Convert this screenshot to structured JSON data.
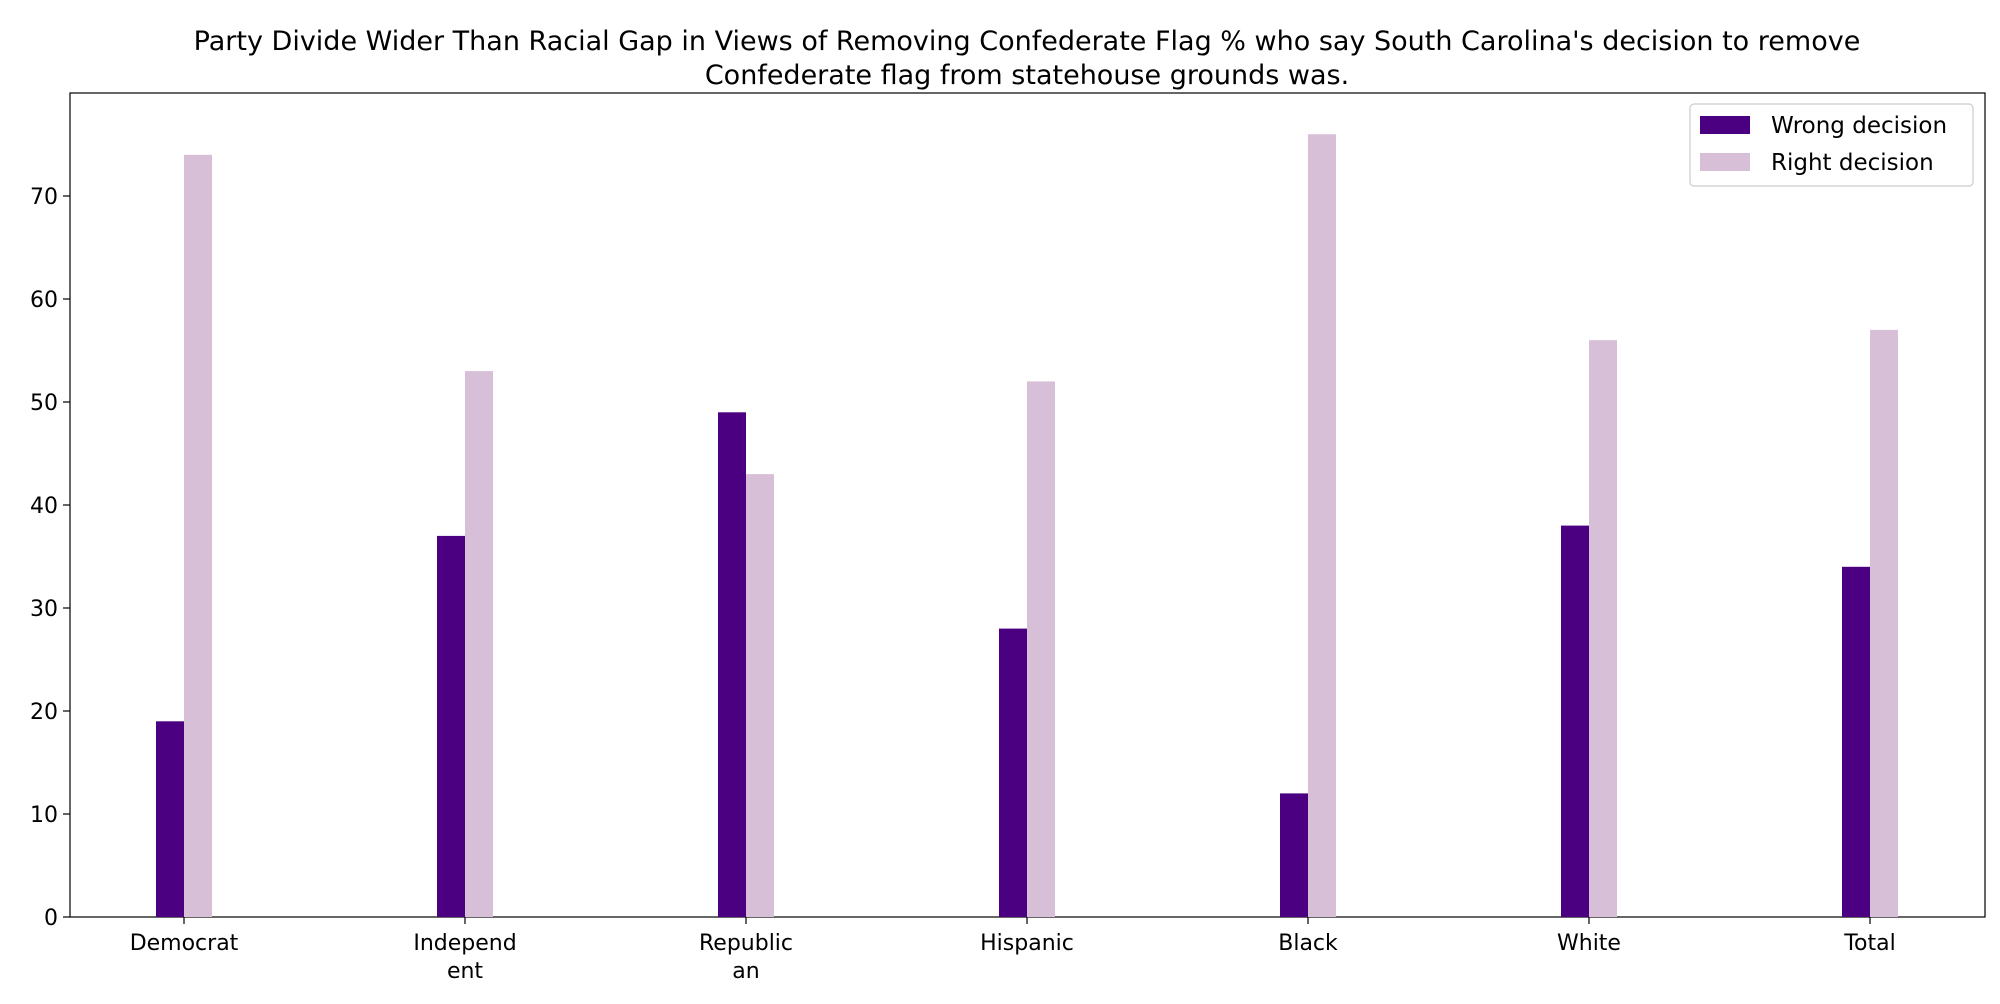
{
  "chart_data": {
    "type": "bar",
    "title": "Party Divide Wider Than Racial Gap in Views of Removing Confederate Flag % who say South Carolina's decision to remove Confederate flag from statehouse grounds was.",
    "title_lines": [
      "Party Divide Wider Than Racial Gap in Views of Removing Confederate Flag % who say South Carolina's decision to remove",
      "Confederate flag from statehouse grounds was."
    ],
    "xlabel": "",
    "ylabel": "",
    "categories": [
      "Democrat",
      "Independent",
      "Republican",
      "Hispanic",
      "Black",
      "White",
      "Total"
    ],
    "category_label_lines": [
      [
        "Democrat"
      ],
      [
        "Independ",
        "ent"
      ],
      [
        "Republic",
        "an"
      ],
      [
        "Hispanic"
      ],
      [
        "Black"
      ],
      [
        "White"
      ],
      [
        "Total"
      ]
    ],
    "series": [
      {
        "name": "Wrong decision",
        "values": [
          19,
          37,
          49,
          28,
          12,
          38,
          34
        ],
        "color": "#4b0082"
      },
      {
        "name": "Right decision",
        "values": [
          74,
          53,
          43,
          52,
          76,
          56,
          57
        ],
        "color": "#d8bfd8"
      }
    ],
    "ylim": [
      0,
      80
    ],
    "yticks": [
      0,
      10,
      20,
      30,
      40,
      50,
      60,
      70
    ],
    "grid": false,
    "legend_position": "top-right"
  }
}
